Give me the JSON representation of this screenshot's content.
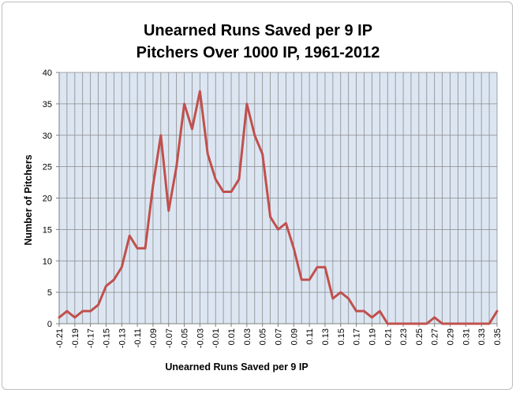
{
  "chart_data": {
    "type": "line",
    "title": [
      "Unearned Runs Saved per 9 IP",
      "Pitchers Over 1000 IP, 1961-2012"
    ],
    "xlabel": "Unearned Runs Saved per 9 IP",
    "ylabel": "Number of Pitchers",
    "ylim": [
      0,
      40
    ],
    "yticks": [
      "0",
      "5",
      "10",
      "15",
      "20",
      "25",
      "30",
      "35",
      "40"
    ],
    "grid": true,
    "legend": "none",
    "x": [
      "-0.21",
      "-0.20",
      "-0.19",
      "-0.18",
      "-0.17",
      "-0.16",
      "-0.15",
      "-0.14",
      "-0.13",
      "-0.12",
      "-0.11",
      "-0.10",
      "-0.09",
      "-0.08",
      "-0.07",
      "-0.06",
      "-0.05",
      "-0.04",
      "-0.03",
      "-0.02",
      "-0.01",
      "0.00",
      "0.01",
      "0.02",
      "0.03",
      "0.04",
      "0.05",
      "0.06",
      "0.07",
      "0.08",
      "0.09",
      "0.10",
      "0.11",
      "0.12",
      "0.13",
      "0.14",
      "0.15",
      "0.16",
      "0.17",
      "0.18",
      "0.19",
      "0.20",
      "0.21",
      "0.22",
      "0.23",
      "0.24",
      "0.25",
      "0.26",
      "0.27",
      "0.28",
      "0.29",
      "0.30",
      "0.31",
      "0.32",
      "0.33",
      "0.34",
      "0.35"
    ],
    "xtick_labels": [
      "-0.21",
      "-0.19",
      "-0.17",
      "-0.15",
      "-0.13",
      "-0.11",
      "-0.09",
      "-0.07",
      "-0.05",
      "-0.03",
      "-0.01",
      "0.01",
      "0.03",
      "0.05",
      "0.07",
      "0.09",
      "0.11",
      "0.13",
      "0.15",
      "0.17",
      "0.19",
      "0.21",
      "0.23",
      "0.25",
      "0.27",
      "0.29",
      "0.31",
      "0.33",
      "0.35"
    ],
    "series": [
      {
        "color": "#c0504d",
        "values": [
          1,
          2,
          1,
          2,
          2,
          3,
          6,
          7,
          9,
          14,
          12,
          12,
          22,
          30,
          18,
          25,
          35,
          31,
          37,
          27,
          23,
          21,
          21,
          23,
          35,
          30,
          27,
          17,
          15,
          16,
          12,
          7,
          7,
          9,
          9,
          4,
          5,
          4,
          2,
          2,
          1,
          2,
          0,
          0,
          0,
          0,
          0,
          0,
          1,
          0,
          0,
          0,
          0,
          0,
          0,
          0,
          2
        ]
      }
    ],
    "colors": {
      "plot_background": "#dce6f2",
      "grid": "#8a8a8a",
      "line": "#c0504d"
    }
  }
}
